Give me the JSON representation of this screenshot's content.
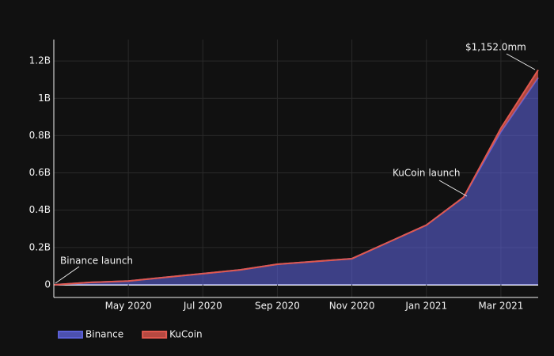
{
  "chart_data": {
    "type": "area",
    "stacked": true,
    "x": [
      "2020-03",
      "2020-04",
      "2020-05",
      "2020-06",
      "2020-07",
      "2020-08",
      "2020-09",
      "2020-10",
      "2020-11",
      "2020-12",
      "2021-01",
      "2021-02",
      "2021-03",
      "2021-04"
    ],
    "series": [
      {
        "name": "Binance",
        "color": "#5b60d6",
        "values": [
          0,
          13000000,
          20000000,
          40000000,
          60000000,
          80000000,
          110000000,
          125000000,
          140000000,
          230000000,
          320000000,
          470000000,
          820000000,
          1110000000
        ]
      },
      {
        "name": "KuCoin",
        "color": "#e0584e",
        "values": [
          0,
          0,
          0,
          0,
          0,
          0,
          0,
          0,
          0,
          0,
          0,
          0,
          20000000,
          42000000
        ]
      }
    ],
    "xlim": [
      "2020-03",
      "2021-04"
    ],
    "xticks": [
      {
        "value": "2020-05",
        "label": "May 2020"
      },
      {
        "value": "2020-07",
        "label": "Jul 2020"
      },
      {
        "value": "2020-09",
        "label": "Sep 2020"
      },
      {
        "value": "2020-11",
        "label": "Nov 2020"
      },
      {
        "value": "2021-01",
        "label": "Jan 2021"
      },
      {
        "value": "2021-03",
        "label": "Mar 2021"
      }
    ],
    "ylim": [
      -68000000,
      1315000000
    ],
    "yticks": [
      0,
      {
        "value": 200000000,
        "label": "0.2B"
      },
      {
        "value": 400000000,
        "label": "0.4B"
      },
      {
        "value": 600000000,
        "label": "0.6B"
      },
      {
        "value": 800000000,
        "label": "0.8B"
      },
      {
        "value": 1000000000,
        "label": "1B"
      },
      {
        "value": 1200000000,
        "label": "1.2B"
      }
    ],
    "grid": true,
    "legend": "bottom-left",
    "annotations": [
      {
        "text": "Binance launch"
      },
      {
        "text": "KuCoin launch"
      },
      {
        "text": "$1,152.0mm"
      }
    ]
  }
}
